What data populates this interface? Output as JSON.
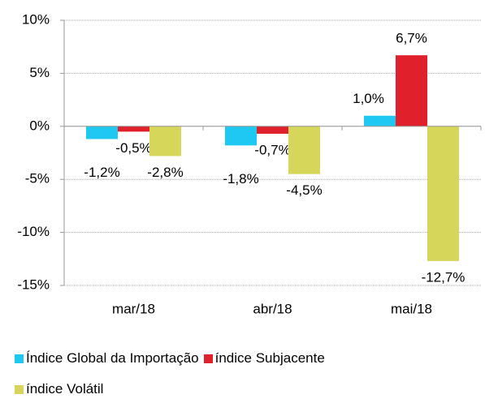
{
  "chart_data": {
    "type": "bar",
    "categories": [
      "mar/18",
      "abr/18",
      "mai/18"
    ],
    "series": [
      {
        "name": "Índice Global da Importação",
        "color": "#1ec8f0",
        "values": [
          -1.2,
          -1.8,
          1.0
        ],
        "value_labels": [
          "-1,2%",
          "-1,8%",
          "1,0%"
        ]
      },
      {
        "name": "índice Subjacente",
        "color": "#e0202a",
        "values": [
          -0.5,
          -0.7,
          6.7
        ],
        "value_labels": [
          "-0,5%",
          "-0,7%",
          "6,7%"
        ]
      },
      {
        "name": "índice Volátil",
        "color": "#d6d65a",
        "values": [
          -2.8,
          -4.5,
          -12.7
        ],
        "value_labels": [
          "-2,8%",
          "-4,5%",
          "-12,7%"
        ]
      }
    ],
    "ylim": [
      -15,
      10
    ],
    "yticks": [
      {
        "value": -15,
        "label": "-15%"
      },
      {
        "value": -10,
        "label": "-10%"
      },
      {
        "value": -5,
        "label": "-5%"
      },
      {
        "value": 0,
        "label": "0%"
      },
      {
        "value": 5,
        "label": "5%"
      },
      {
        "value": 10,
        "label": "10%"
      }
    ],
    "grid": true
  }
}
